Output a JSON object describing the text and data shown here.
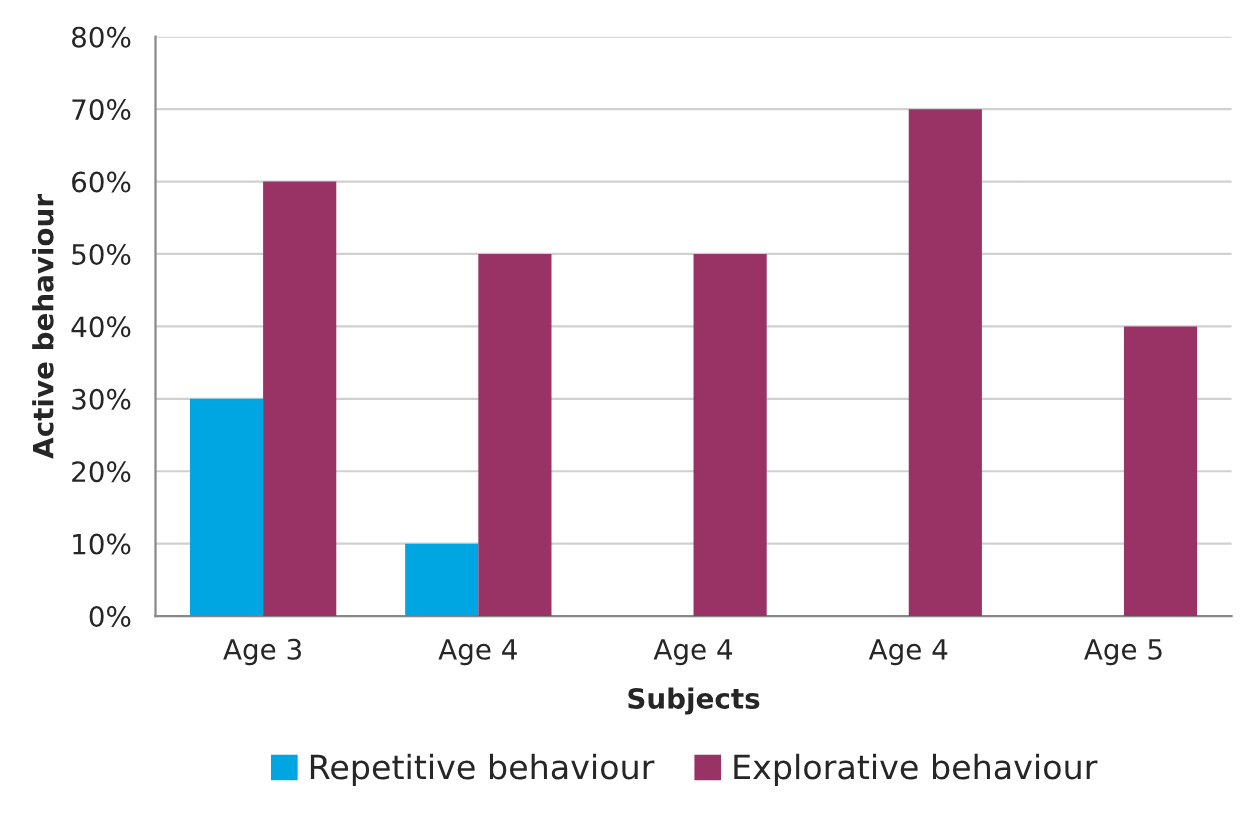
{
  "chart_data": {
    "type": "bar",
    "xlabel": "Subjects",
    "ylabel": "Active behaviour",
    "categories": [
      "Age 3",
      "Age 4",
      "Age 4",
      "Age 4",
      "Age 5"
    ],
    "series": [
      {
        "name": "Repetitive behaviour",
        "color": "#00a6e2",
        "values": [
          30,
          10,
          null,
          null,
          null
        ]
      },
      {
        "name": "Explorative behaviour",
        "color": "#993366",
        "values": [
          60,
          50,
          50,
          70,
          40
        ]
      }
    ],
    "ylim": [
      0,
      80
    ],
    "yticks": [
      {
        "value": 0,
        "label": "0%"
      },
      {
        "value": 10,
        "label": "10%"
      },
      {
        "value": 20,
        "label": "20%"
      },
      {
        "value": 30,
        "label": "30%"
      },
      {
        "value": 40,
        "label": "40%"
      },
      {
        "value": 50,
        "label": "50%"
      },
      {
        "value": 60,
        "label": "60%"
      },
      {
        "value": 70,
        "label": "70%"
      },
      {
        "value": 80,
        "label": "80%"
      }
    ],
    "grid": "y",
    "legend": "bottom"
  }
}
